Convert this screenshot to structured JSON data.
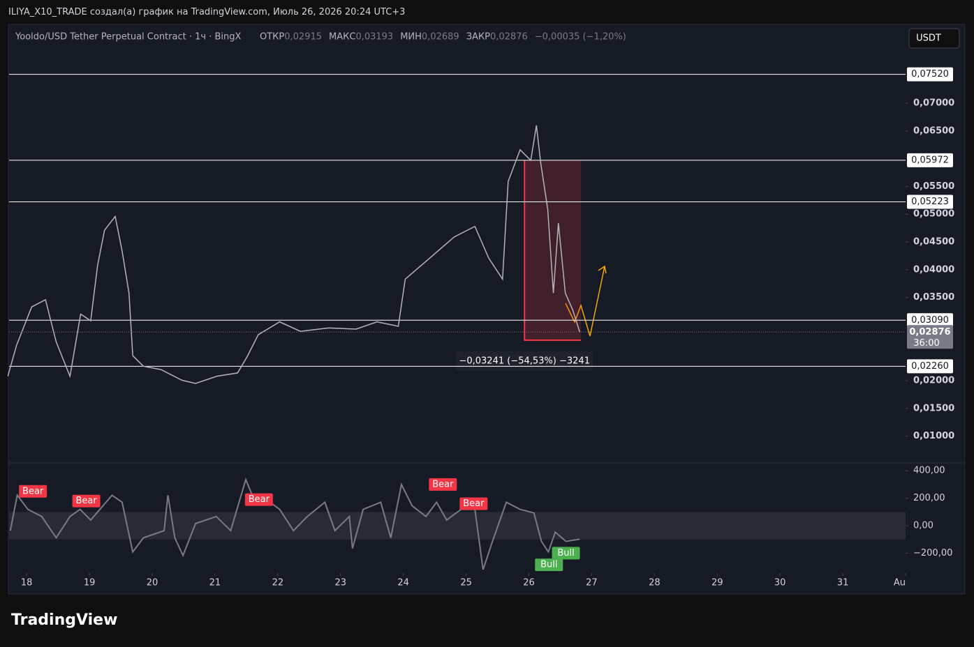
{
  "header": {
    "title": "ILIYA_X10_TRADE создал(а) график на TradingView.com, Июль 26, 2026 20:24 UTC+3",
    "currency": "USDT",
    "brand": "TradingView"
  },
  "chart_data": {
    "type": "line",
    "title": "Yooldo/USD Tether Perpetual Contract · 1ч · BingX",
    "legend": [
      {
        "label": "ОТКР",
        "value": "0,02915"
      },
      {
        "label": "МАКС",
        "value": "0,03193"
      },
      {
        "label": "МИН",
        "value": "0,02689"
      },
      {
        "label": "ЗАКР",
        "value": "0,02876"
      }
    ],
    "change": "−0,00035 (−1,20%)",
    "color": "#b2b5be",
    "x": [
      17.7,
      17.84,
      18.08,
      18.3,
      18.47,
      18.69,
      18.86,
      19.02,
      19.13,
      19.24,
      19.41,
      19.52,
      19.63,
      19.69,
      19.86,
      20.14,
      20.47,
      20.69,
      21.03,
      21.36,
      21.52,
      21.69,
      22.03,
      22.36,
      22.81,
      23.25,
      23.58,
      23.92,
      24.03,
      24.36,
      24.81,
      25.14,
      25.36,
      25.58,
      25.67,
      25.86,
      26.03,
      26.12,
      26.19,
      26.3,
      26.39,
      26.47,
      26.58,
      26.7,
      26.81
    ],
    "values": [
      0.0208,
      0.0264,
      0.0333,
      0.0346,
      0.027,
      0.0208,
      0.032,
      0.0308,
      0.0408,
      0.0471,
      0.0496,
      0.0434,
      0.0358,
      0.0245,
      0.0226,
      0.022,
      0.0201,
      0.0195,
      0.0208,
      0.0214,
      0.0245,
      0.0283,
      0.0306,
      0.0289,
      0.0295,
      0.0293,
      0.0306,
      0.0298,
      0.0383,
      0.0415,
      0.0459,
      0.0478,
      0.0421,
      0.0383,
      0.0559,
      0.0616,
      0.0597,
      0.066,
      0.0591,
      0.0509,
      0.0358,
      0.0484,
      0.0358,
      0.0327,
      0.02876
    ],
    "xlim": [
      17.72,
      32.0
    ],
    "xticks": [
      18,
      19,
      20,
      21,
      22,
      23,
      24,
      25,
      26,
      27,
      28,
      29,
      30,
      31,
      {
        "value": 32,
        "label": "Au"
      }
    ],
    "ylim": [
      0.00518,
      0.0842
    ],
    "yticks": [
      {
        "value": 0.07,
        "label": "0,07000"
      },
      {
        "value": 0.065,
        "label": "0,06500"
      },
      {
        "value": 0.055,
        "label": "0,05500"
      },
      {
        "value": 0.05,
        "label": "0,05000"
      },
      {
        "value": 0.045,
        "label": "0,04500"
      },
      {
        "value": 0.04,
        "label": "0,04000"
      },
      {
        "value": 0.035,
        "label": "0,03500"
      },
      {
        "value": 0.02,
        "label": "0,02000"
      },
      {
        "value": 0.015,
        "label": "0,01500"
      },
      {
        "value": 0.01,
        "label": "0,01000"
      }
    ],
    "levels": [
      {
        "value": 0.0752,
        "label": "0,07520"
      },
      {
        "value": 0.05972,
        "label": "0,05972"
      },
      {
        "value": 0.05223,
        "label": "0,05223"
      },
      {
        "value": 0.0309,
        "label": "0,03090"
      },
      {
        "value": 0.0226,
        "label": "0,02260"
      }
    ],
    "last_price": {
      "value": 0.02876,
      "label": "0,02876",
      "countdown": "36:00"
    },
    "measure": {
      "x0": 25.92,
      "x1": 26.83,
      "top": 0.05972,
      "bottom": 0.02731,
      "label": "−0,03241 (−54,53%) −3241"
    },
    "oscillator": {
      "color": "#787b86",
      "x": [
        17.74,
        17.85,
        18.02,
        18.24,
        18.47,
        18.69,
        18.85,
        19.02,
        19.36,
        19.52,
        19.69,
        19.86,
        20.19,
        20.25,
        20.36,
        20.49,
        20.69,
        21.02,
        21.25,
        21.49,
        21.64,
        21.8,
        22.03,
        22.25,
        22.47,
        22.75,
        22.91,
        23.14,
        23.19,
        23.36,
        23.64,
        23.8,
        23.97,
        24.14,
        24.36,
        24.53,
        24.69,
        24.92,
        25.14,
        25.27,
        25.42,
        25.64,
        25.86,
        26.08,
        26.2,
        26.31,
        26.42,
        26.59,
        26.81
      ],
      "values": [
        -36,
        222,
        119,
        67,
        -88,
        67,
        119,
        41,
        222,
        171,
        -191,
        -88,
        -36,
        222,
        -88,
        -217,
        16,
        67,
        -36,
        336,
        171,
        196,
        119,
        -36,
        67,
        171,
        -36,
        67,
        -165,
        119,
        171,
        -88,
        300,
        145,
        67,
        171,
        41,
        119,
        119,
        -320,
        -114,
        171,
        119,
        93,
        -114,
        -191,
        -47,
        -114,
        -98
      ],
      "ylim": [
        -345,
        457
      ],
      "yticks": [
        {
          "value": 400,
          "label": "400,00"
        },
        {
          "value": 200,
          "label": "200,00"
        },
        {
          "value": 0,
          "label": "0,00"
        },
        {
          "value": -200,
          "label": "−200,00"
        }
      ],
      "band": [
        100,
        -100
      ],
      "signals": [
        {
          "text": "Bear",
          "x": 18.1,
          "y": 250,
          "color": "#f23645"
        },
        {
          "text": "Bear",
          "x": 18.95,
          "y": 180,
          "color": "#f23645"
        },
        {
          "text": "Bear",
          "x": 21.7,
          "y": 190,
          "color": "#f23645"
        },
        {
          "text": "Bear",
          "x": 24.63,
          "y": 300,
          "color": "#f23645"
        },
        {
          "text": "Bear",
          "x": 25.12,
          "y": 160,
          "color": "#f23645"
        },
        {
          "text": "Bull",
          "x": 26.59,
          "y": -200,
          "color": "#4caf50"
        },
        {
          "text": "Bull",
          "x": 26.32,
          "y": -285,
          "color": "#4caf50"
        }
      ]
    }
  }
}
